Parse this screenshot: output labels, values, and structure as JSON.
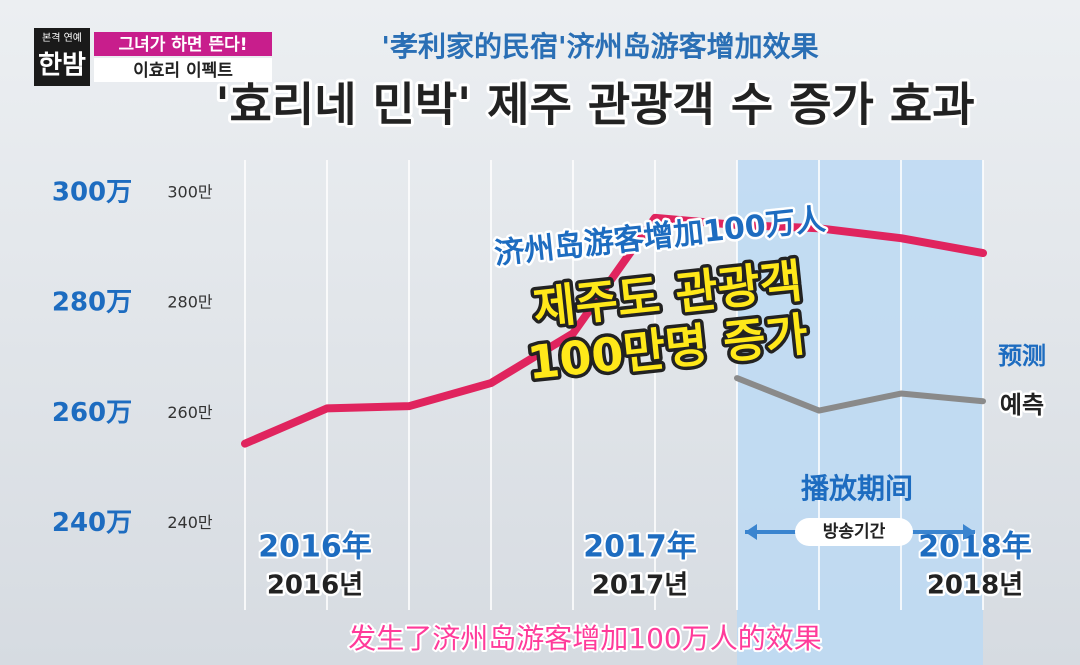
{
  "overlay": {
    "show_logo_top": "본격 연예",
    "show_logo": "한밤",
    "banner_1": "그녀가 하면 뜬다!",
    "banner_2": "이효리 이펙트",
    "caption": "发生了济州岛游客增加100万人的效果"
  },
  "chart_data": {
    "type": "line",
    "subtitle": "'孝利家的民宿'济州岛游客增加效果",
    "title": "'효리네 민박' 제주 관광객 수 증가 효과",
    "categories": [
      null,
      null,
      null,
      null,
      null,
      null,
      null,
      null,
      null,
      null
    ],
    "series": [
      {
        "color": "#e0245e",
        "values": [
          254.5,
          260.9,
          261.3,
          265.5,
          274.5,
          295.5,
          294.2,
          293.6,
          291.8,
          289.1
        ]
      },
      {
        "name": "预测",
        "color": "#8a8a8a",
        "values": [
          null,
          null,
          null,
          null,
          null,
          null,
          266.4,
          260.5,
          263.6,
          262.2
        ]
      }
    ],
    "ylim": [
      237,
      306
    ],
    "yticks": [
      {
        "value": 300,
        "label": "300万"
      },
      {
        "value": 280,
        "label": "280万"
      },
      {
        "value": 260,
        "label": "260万"
      },
      {
        "value": 240,
        "label": "240万"
      }
    ],
    "yticks_ko": [
      {
        "value": 300,
        "label": "300만"
      },
      {
        "value": 280,
        "label": "280만"
      },
      {
        "value": 260,
        "label": "260만"
      },
      {
        "value": 240,
        "label": "240만"
      }
    ],
    "year_labels": [
      {
        "zh": "2016年",
        "ko": "2016년"
      },
      {
        "zh": "2017年",
        "ko": "2017년"
      },
      {
        "zh": "2018年",
        "ko": "2018년"
      }
    ],
    "series_label_ko": "예측",
    "period_label": "播放期间",
    "period_label_ko": "방송기간",
    "annotation_zh": "济州岛游客增加100万人",
    "annotation_ko_1": "제주도 관광객",
    "annotation_ko_2": "100만명 증가"
  }
}
